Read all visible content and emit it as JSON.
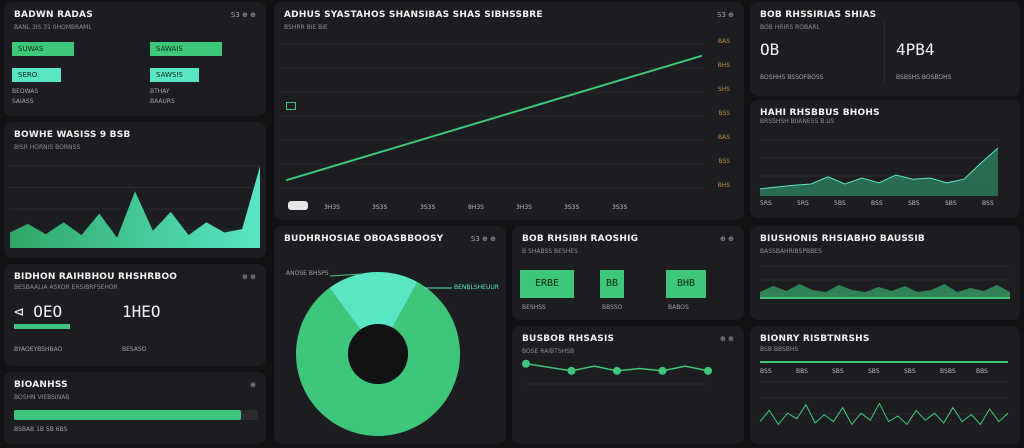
{
  "colors": {
    "green": "#3ec77a",
    "teal": "#58e6c5",
    "bg": "#111214",
    "card": "#1c1d20",
    "orange": "#c08a4a"
  },
  "c1": {
    "title": "BADWN RADAS",
    "sub": "BANL 3IS 31 0HOMBRAML",
    "ctrl": "S3 ⊕ ⊕",
    "bars": [
      {
        "label": "SUWAS",
        "pct": 0.75,
        "color": "#3ec77a"
      },
      {
        "label": "SAWAIS",
        "pct": 0.88,
        "color": "#3ec77a"
      },
      {
        "label": "SERO",
        "pct": 0.6,
        "color": "#58e6c5"
      },
      {
        "label": "SAWSIS",
        "pct": 0.6,
        "color": "#58e6c5"
      }
    ],
    "caps": [
      "BEOWAS",
      "BTHAY",
      "SAIASS",
      "BAAURS"
    ]
  },
  "c2": {
    "title": "BOWHE WASISS 9 BSB",
    "sub": "BISR HORNIS BORNSS",
    "area": [
      0.18,
      0.28,
      0.16,
      0.3,
      0.15,
      0.4,
      0.12,
      0.66,
      0.2,
      0.42,
      0.15,
      0.3,
      0.18,
      0.22,
      0.95
    ]
  },
  "c3": {
    "title": "BIDHON RAIHBHOU RHSHRBOO",
    "sub": "BESBAALIA ASKOR ERSIBRFSEHOR",
    "ctrl": "⊕ ⊕",
    "v1": "⊲ OEO",
    "v2": "1HEO",
    "cap1": "BYAOEYBSHBAO",
    "cap2": "BESASO"
  },
  "c4": {
    "title": "BIOANHSS",
    "sub": "BOSHN VIEBSINAB",
    "ctrl": "⊕",
    "pct": 0.93,
    "cap": "BSBAB 1B 5B 6BS"
  },
  "c5": {
    "title": "ADHUS SYASTAHOS SHANSIBAS SHAS SIBHSSBRE",
    "sub": "BSHRR BIE BIE",
    "ctrl": "S3 ⊕",
    "marker": "BBO",
    "line": [
      0.12,
      0.88
    ],
    "xt": [
      "3H3S",
      "3S3S",
      "3S3S",
      "8H3S",
      "3H3S",
      "3S3S",
      "3S3S"
    ],
    "yt": [
      "BAS",
      "BHS",
      "SHS",
      "BSS",
      "BAS",
      "BSS",
      "BHS"
    ]
  },
  "c6": {
    "title": "BUDHRHOSIAE OBOASBBOOSY",
    "ctrl": "S3 ⊕ ⊕",
    "labels": [
      "ANOSE BHSPS",
      "BENBLSHEUUR"
    ],
    "slices": [
      {
        "value": 82,
        "color": "#3ec77a"
      },
      {
        "value": 18,
        "color": "#58e6c5"
      }
    ]
  },
  "c7": {
    "title": "BOB RHSIBH RAOSHIG",
    "sub": "B SHABSS BESHES",
    "ctrl": "⊕ ⊕",
    "pills": [
      {
        "label": "ERBE",
        "cap": "BESHSS"
      },
      {
        "label": "BB",
        "cap": "BBSSO"
      },
      {
        "label": "BHB",
        "cap": "BABOS"
      }
    ]
  },
  "c8": {
    "title": "BUSBOB RHSASIS",
    "sub": "BOSE RAIBTSHSB",
    "ctrl": "⊕ ⊕",
    "points": [
      0.68,
      0.65,
      0.62,
      0.66,
      0.62,
      0.64,
      0.62,
      0.66,
      0.62
    ]
  },
  "c9": {
    "title": "BOB RHSSIRIAS SHIAS",
    "sub": "BOB HRIRS ROBARL",
    "v": "OB",
    "cap": "BOSHHS BSSOFBOSS"
  },
  "c10": {
    "title": "",
    "v": "4PB4",
    "cap": "BSBSHS BOSBOHS"
  },
  "c11": {
    "title": "HAHI RHSBBUS BHOHS",
    "sub": "BRSSHSH BIIANESS B.US",
    "area": [
      0.12,
      0.15,
      0.18,
      0.2,
      0.32,
      0.2,
      0.3,
      0.22,
      0.35,
      0.28,
      0.3,
      0.22,
      0.28,
      0.55,
      0.8
    ],
    "xt": [
      "5RS",
      "5RS",
      "5BS",
      "BSS",
      "SBS",
      "SBS",
      "BSS"
    ]
  },
  "c12": {
    "title": "BIUSHONIS RHSIABHO BAUSSIB",
    "sub": "BASSBAHRIBSPBBES",
    "wave": [
      0.3,
      0.6,
      0.35,
      0.7,
      0.4,
      0.3,
      0.65,
      0.4,
      0.3,
      0.55,
      0.35,
      0.6,
      0.3,
      0.4,
      0.7,
      0.3,
      0.5,
      0.35,
      0.65,
      0.3
    ]
  },
  "c13": {
    "title": "BIONRY RISBTNRSHS",
    "sub": "BSB BBSBHS",
    "xt": [
      "BSS",
      "BBS",
      "SBS",
      "SBS",
      "SBS",
      "BSBS",
      "BBS"
    ],
    "wave": [
      0.3,
      0.7,
      0.2,
      0.6,
      0.4,
      0.9,
      0.25,
      0.55,
      0.3,
      0.8,
      0.2,
      0.6,
      0.35,
      0.95,
      0.3,
      0.5,
      0.2,
      0.7,
      0.35,
      0.6,
      0.25,
      0.8,
      0.3,
      0.55,
      0.2,
      0.75,
      0.3,
      0.6
    ]
  }
}
